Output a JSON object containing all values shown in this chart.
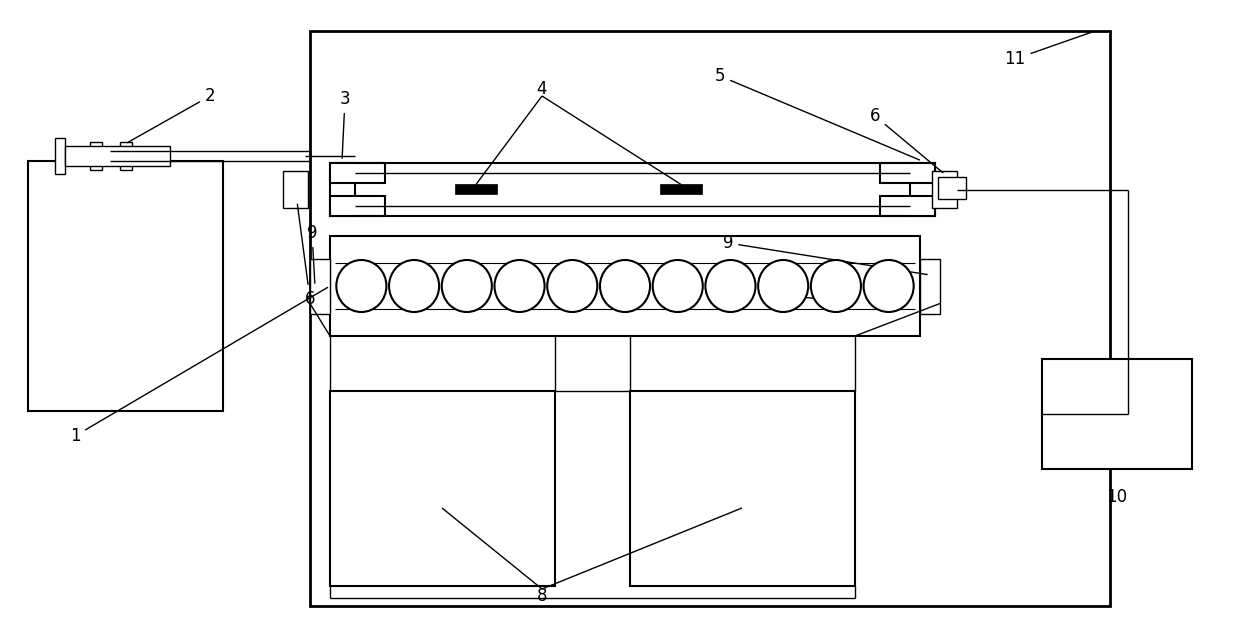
{
  "bg_color": "#ffffff",
  "lw_thick": 2.0,
  "lw_med": 1.5,
  "lw_thin": 1.0,
  "fig_width": 12.4,
  "fig_height": 6.41,
  "label_fs": 12
}
